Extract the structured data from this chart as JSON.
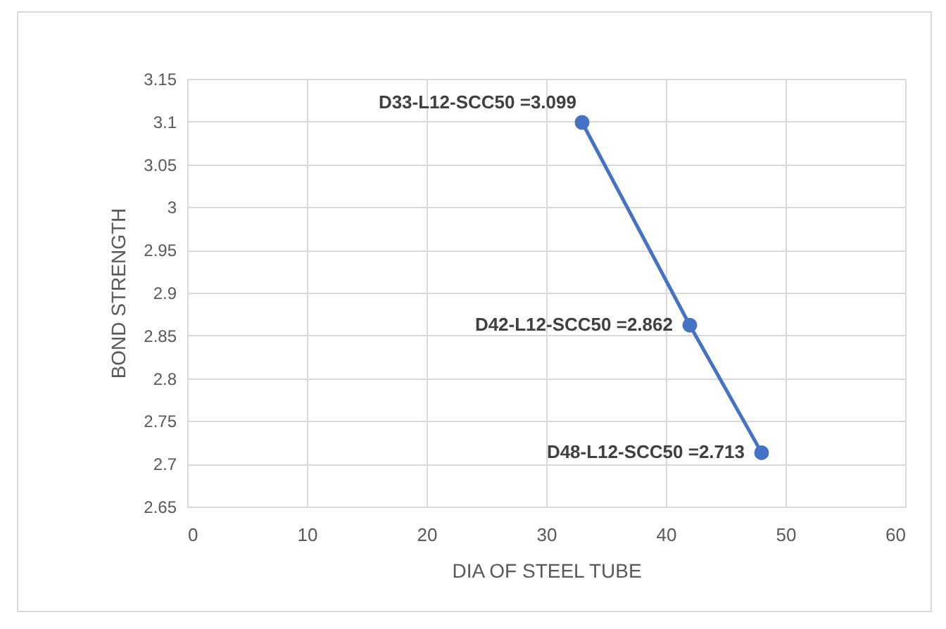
{
  "chart_data": {
    "type": "line",
    "xlabel": "DIA OF STEEL TUBE",
    "ylabel": "BOND STRENGTH",
    "x": [
      33,
      42,
      48
    ],
    "series": [
      {
        "color": "#4472c4",
        "values": [
          3.099,
          2.862,
          2.713
        ],
        "value_labels": [
          "D33-L12-SCC50 =3.099",
          "D42-L12-SCC50 =2.862",
          "D48-L12-SCC50 =2.713"
        ]
      }
    ],
    "xlim": [
      0,
      60
    ],
    "xticks": [
      0,
      10,
      20,
      30,
      40,
      50,
      60
    ],
    "ylim": [
      2.65,
      3.15
    ],
    "yticks": [
      2.65,
      2.7,
      2.75,
      2.8,
      2.85,
      2.9,
      2.95,
      3,
      3.05,
      3.1,
      3.15
    ],
    "grid": true,
    "marker": "circle",
    "line_style": "solid"
  }
}
